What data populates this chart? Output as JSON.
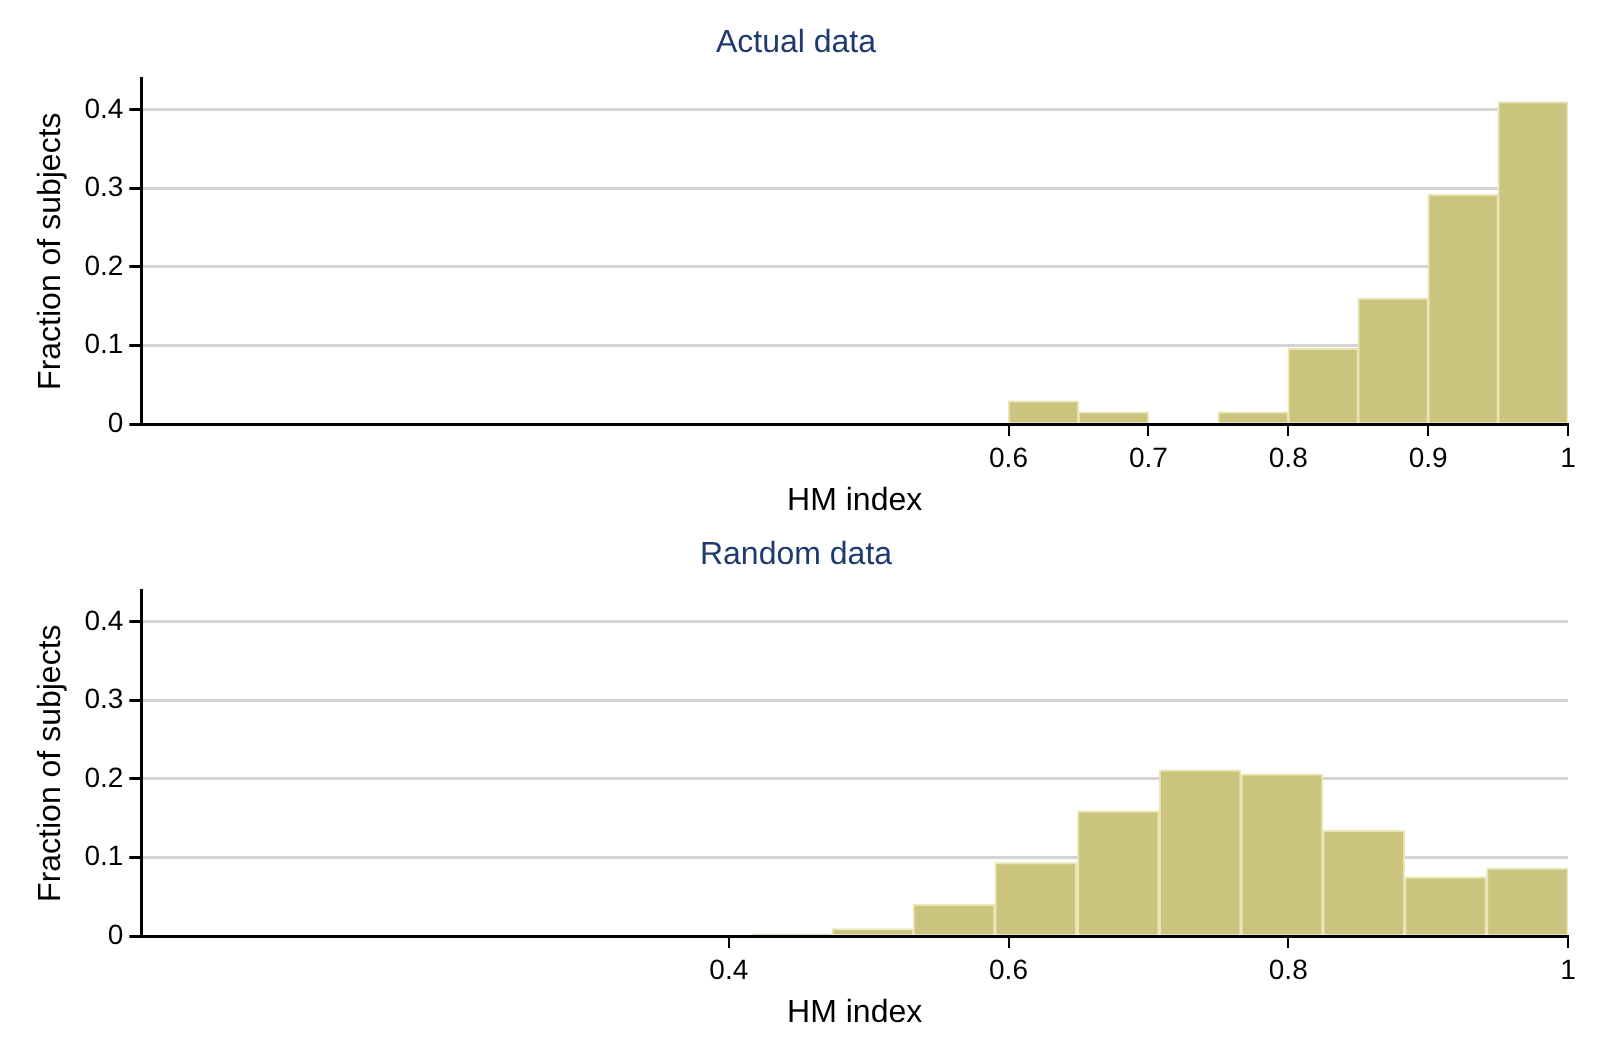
{
  "chart_data": [
    {
      "type": "histogram",
      "title": "Actual data",
      "xlabel": "HM index",
      "ylabel": "Fraction of subjects",
      "color": "#cbc47f",
      "bins": [
        0.6,
        0.65,
        0.7,
        0.75,
        0.8,
        0.85,
        0.9,
        0.95,
        1.0
      ],
      "values": [
        0.029,
        0.015,
        0,
        0.015,
        0.096,
        0.16,
        0.292,
        0.41
      ],
      "xlim": [
        -0.02,
        1
      ],
      "xticks": [
        0.6,
        0.7,
        0.8,
        0.9,
        1
      ],
      "ylim": [
        0,
        0.44
      ],
      "yticks": [
        0,
        0.1,
        0.2,
        0.3,
        0.4
      ],
      "grid": "y",
      "legend": false
    },
    {
      "type": "histogram",
      "title": "Random data",
      "xlabel": "HM index",
      "ylabel": "Fraction of subjects",
      "color": "#cbc47f",
      "bins": [
        0.416,
        0.474,
        0.532,
        0.59,
        0.649,
        0.708,
        0.766,
        0.825,
        0.883,
        0.942,
        1.0
      ],
      "values": [
        0.002,
        0.009,
        0.04,
        0.093,
        0.159,
        0.211,
        0.206,
        0.134,
        0.075,
        0.086
      ],
      "xlim": [
        -0.02,
        1
      ],
      "xticks": [
        0.4,
        0.6,
        0.8,
        1
      ],
      "ylim": [
        0,
        0.44
      ],
      "yticks": [
        0,
        0.1,
        0.2,
        0.3,
        0.4
      ],
      "grid": "y",
      "legend": false
    }
  ]
}
